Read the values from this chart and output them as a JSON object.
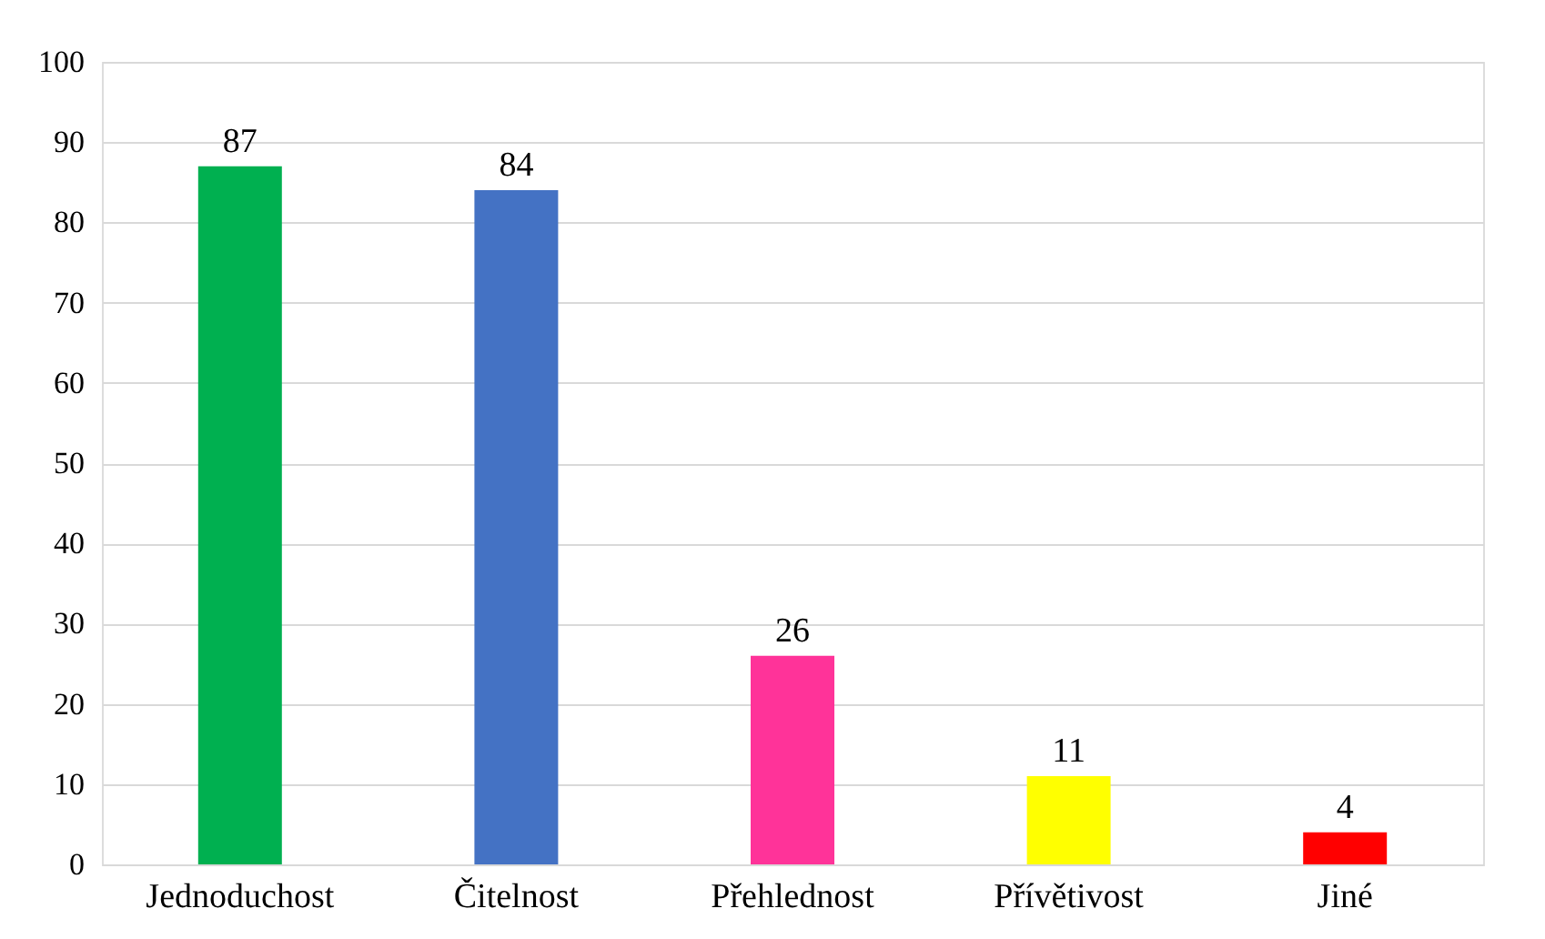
{
  "chart_data": {
    "type": "bar",
    "categories": [
      "Jednoduchost",
      "Čitelnost",
      "Přehlednost",
      "Přívětivost",
      "Jiné"
    ],
    "values": [
      87,
      84,
      26,
      11,
      4
    ],
    "colors": [
      "#00b050",
      "#4472c4",
      "#ff3399",
      "#ffff00",
      "#ff0000"
    ],
    "ylim": [
      0,
      100
    ],
    "yticks": [
      0,
      10,
      20,
      30,
      40,
      50,
      60,
      70,
      80,
      90,
      100
    ],
    "grid": "y",
    "data_labels": true
  }
}
